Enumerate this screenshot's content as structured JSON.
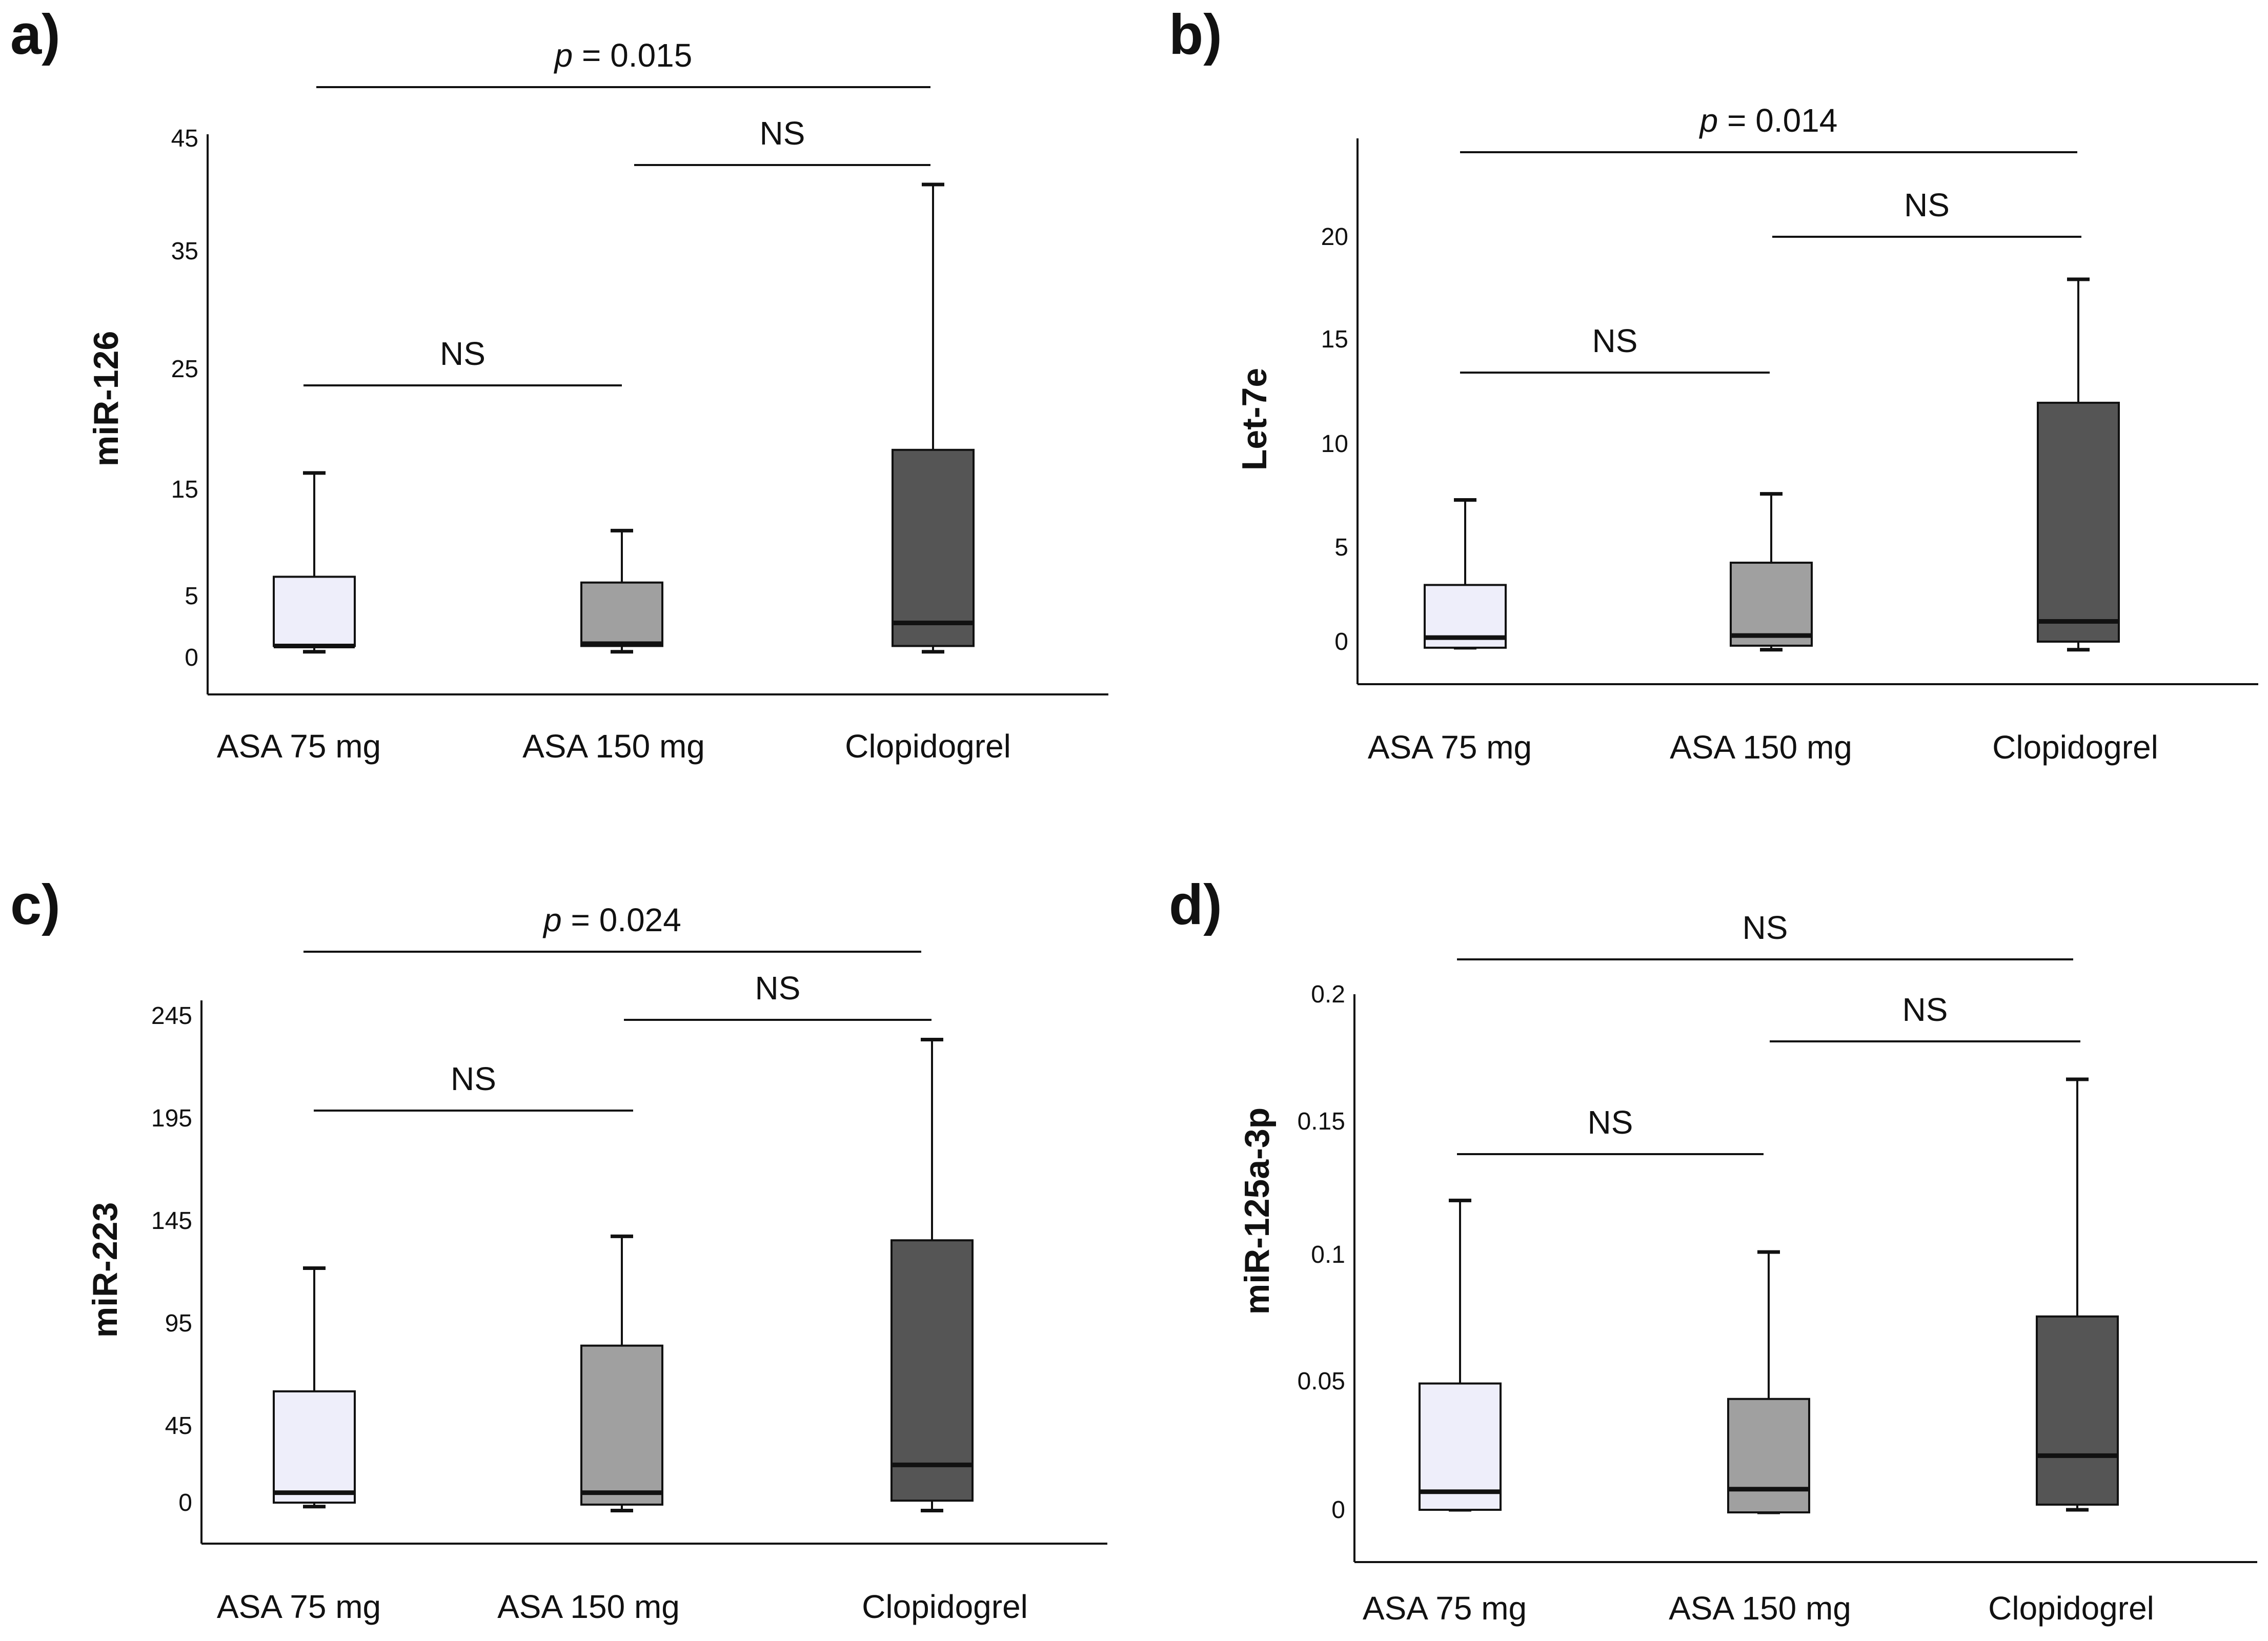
{
  "chart_data": [
    {
      "type": "box",
      "panel": "a)",
      "ylabel": "miR-126",
      "categories": [
        "ASA 75 mg",
        "ASA 150 mg",
        "Clopidogrel"
      ],
      "colors": [
        "#eeeefa",
        "#a0a0a0",
        "#555555"
      ],
      "yticks": [
        "0",
        "5",
        "15",
        "25",
        "35",
        "45"
      ],
      "boxes": [
        {
          "min": 0.5,
          "q1": 1,
          "median": 1,
          "q3": 7,
          "max": 16
        },
        {
          "min": 0.5,
          "q1": 1,
          "median": 1.2,
          "q3": 6.5,
          "max": 11
        },
        {
          "min": 0.5,
          "q1": 1,
          "median": 3,
          "q3": 18,
          "max": 41
        }
      ],
      "brackets": [
        {
          "from": 0,
          "to": 2,
          "label_prefix": "p",
          "label": " = 0.015",
          "level": 0
        },
        {
          "from": 1,
          "to": 2,
          "label_prefix": "",
          "label": "NS",
          "level": 1
        },
        {
          "from": 0,
          "to": 1,
          "label_prefix": "",
          "label": "NS",
          "level": 2
        }
      ]
    },
    {
      "type": "box",
      "panel": "b)",
      "ylabel": "Let-7e",
      "categories": [
        "ASA 75 mg",
        "ASA 150 mg",
        "Clopidogrel"
      ],
      "colors": [
        "#eeeefa",
        "#a0a0a0",
        "#555555"
      ],
      "yticks": [
        "0",
        "5",
        "10",
        "15",
        "20"
      ],
      "boxes": [
        {
          "min": -0.3,
          "q1": -0.3,
          "median": 0.2,
          "q3": 2.8,
          "max": 7
        },
        {
          "min": -0.4,
          "q1": -0.2,
          "median": 0.3,
          "q3": 3.9,
          "max": 7.3
        },
        {
          "min": -0.4,
          "q1": 0,
          "median": 1,
          "q3": 11.8,
          "max": 17.9
        }
      ],
      "brackets": [
        {
          "from": 0,
          "to": 2,
          "label_prefix": "p",
          "label": " = 0.014",
          "level": 0
        },
        {
          "from": 1,
          "to": 2,
          "label_prefix": "",
          "label": "NS",
          "level": 1
        },
        {
          "from": 0,
          "to": 1,
          "label_prefix": "",
          "label": "NS",
          "level": 2
        }
      ]
    },
    {
      "type": "box",
      "panel": "c)",
      "ylabel": "miR-223",
      "categories": [
        "ASA 75 mg",
        "ASA 150 mg",
        "Clopidogrel"
      ],
      "colors": [
        "#eeeefa",
        "#a0a0a0",
        "#555555"
      ],
      "yticks": [
        "0",
        "45",
        "95",
        "145",
        "195",
        "245"
      ],
      "boxes": [
        {
          "min": -2,
          "q1": 0,
          "median": 5,
          "q3": 56,
          "max": 118
        },
        {
          "min": -4,
          "q1": -1,
          "median": 5,
          "q3": 79,
          "max": 134
        },
        {
          "min": -4,
          "q1": 1,
          "median": 19,
          "q3": 132,
          "max": 233
        }
      ],
      "brackets": [
        {
          "from": 0,
          "to": 2,
          "label_prefix": "p",
          "label": " = 0.024",
          "level": 0
        },
        {
          "from": 1,
          "to": 2,
          "label_prefix": "",
          "label": "NS",
          "level": 1
        },
        {
          "from": 0,
          "to": 1,
          "label_prefix": "",
          "label": "NS",
          "level": 2
        }
      ]
    },
    {
      "type": "box",
      "panel": "d)",
      "ylabel": "miR-125a-3p",
      "categories": [
        "ASA 75 mg",
        "ASA 150 mg",
        "Clopidogrel"
      ],
      "colors": [
        "#eeeefa",
        "#a0a0a0",
        "#555555"
      ],
      "yticks": [
        "0",
        "0.05",
        "0.1",
        "0.15",
        "0.2"
      ],
      "boxes": [
        {
          "min": 0,
          "q1": 0,
          "median": 0.007,
          "q3": 0.049,
          "max": 0.12
        },
        {
          "min": -0.001,
          "q1": -0.001,
          "median": 0.008,
          "q3": 0.043,
          "max": 0.1
        },
        {
          "min": 0,
          "q1": 0.002,
          "median": 0.021,
          "q3": 0.075,
          "max": 0.167
        }
      ],
      "brackets": [
        {
          "from": 0,
          "to": 2,
          "label_prefix": "",
          "label": "NS",
          "level": 0
        },
        {
          "from": 1,
          "to": 2,
          "label_prefix": "",
          "label": "NS",
          "level": 1
        },
        {
          "from": 0,
          "to": 1,
          "label_prefix": "",
          "label": "NS",
          "level": 2
        }
      ]
    }
  ]
}
